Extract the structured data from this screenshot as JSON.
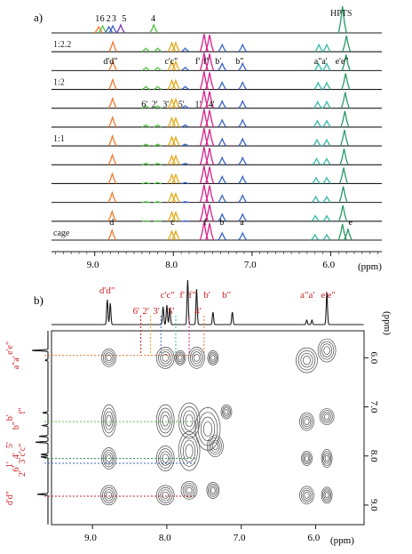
{
  "colors": {
    "trace": "#1a1a1a",
    "orange": "#f07a2c",
    "yellow": "#e6a817",
    "blue": "#3a64c4",
    "magenta": "#d8208c",
    "teal": "#36b9a8",
    "green": "#2a9a64",
    "lime": "#57c248",
    "purple": "#7b3fb3",
    "red_label": "#cc1f1f",
    "contour": "#4a4a4a"
  },
  "chart_data": [
    {
      "type": "line",
      "panel_label": "a)",
      "x_axis": {
        "label": "(ppm)",
        "ticks": [
          9.0,
          8.0,
          7.0,
          6.0
        ],
        "range": [
          9.55,
          5.35
        ],
        "reversed": true
      },
      "traces": [
        {
          "name": "cage",
          "index": 0
        },
        {
          "name": "",
          "index": 1
        },
        {
          "name": "",
          "index": 2
        },
        {
          "name": "",
          "index": 3
        },
        {
          "name": "",
          "index": 4
        },
        {
          "name": "1:1",
          "index": 5
        },
        {
          "name": "",
          "index": 6
        },
        {
          "name": "",
          "index": 7
        },
        {
          "name": "1:2",
          "index": 8
        },
        {
          "name": "",
          "index": 9
        },
        {
          "name": "1:2.2",
          "index": 10
        },
        {
          "name": "HPTS",
          "index": 11
        }
      ],
      "labels": {
        "cage": [
          "d",
          "c",
          "f",
          "b",
          "a",
          "e"
        ],
        "complex_1_2_2": [
          "d'd\"",
          "c'c\"",
          "f'",
          "f\"",
          "b'",
          "b\"",
          "a\"a'",
          "e'e\""
        ],
        "complex_1_2": [
          "6'",
          "2'",
          "3'",
          "5'",
          "1'",
          "4'"
        ],
        "hpts": [
          "1",
          "6",
          "2",
          "3",
          "5",
          "4"
        ]
      }
    },
    {
      "type": "heatmap",
      "panel_label": "b)",
      "x_axis": {
        "label": "(ppm)",
        "ticks": [
          9.0,
          8.0,
          7.0,
          6.0
        ],
        "range": [
          9.55,
          5.35
        ],
        "reversed": true
      },
      "y_axis": {
        "label": "(ppm)",
        "ticks": [
          6.0,
          7.0,
          8.0,
          9.0
        ]
      },
      "top_labels": [
        "d'd\"",
        "6'",
        "2'",
        "3'",
        "c'c\"",
        "5'",
        "f'",
        "f\"",
        "b'",
        "b\"",
        "4'",
        "a\"a'",
        "e'e\""
      ],
      "left_labels": [
        "e'e\"",
        "a\"a'",
        "f\"",
        "b'",
        "b\"",
        "c'c\"",
        "5'",
        "4'",
        "3'",
        "1'",
        "6'",
        "2'",
        "d'd\""
      ]
    }
  ]
}
